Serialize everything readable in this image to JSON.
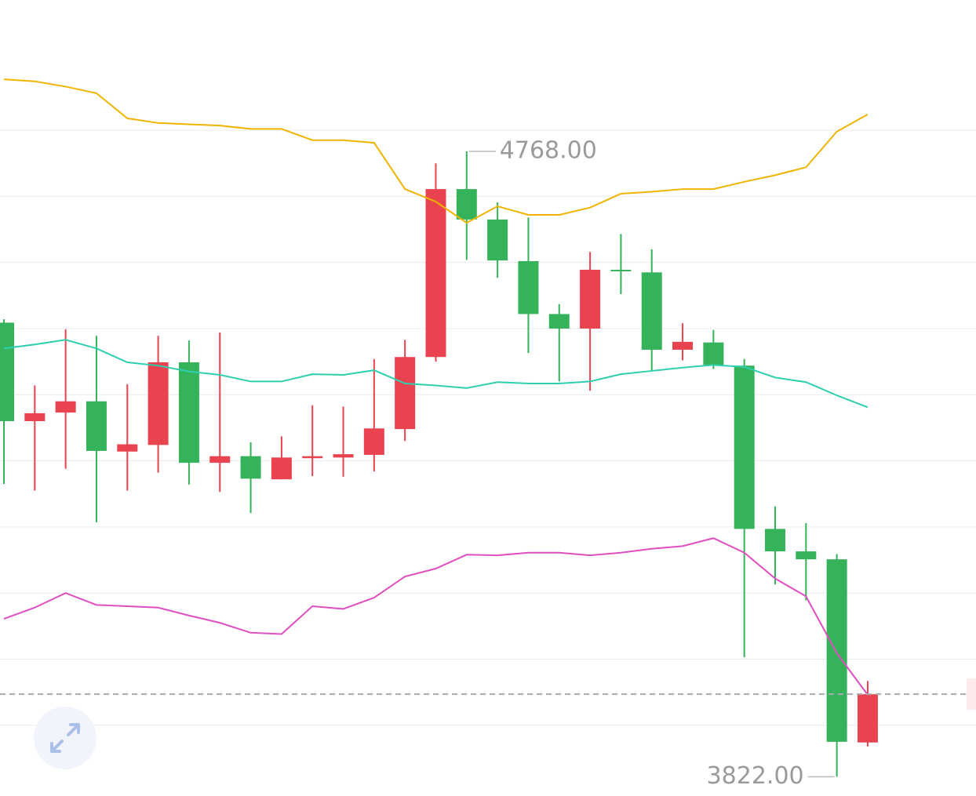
{
  "chart_data": {
    "type": "candlestick",
    "open": [
      4509,
      4360,
      4373,
      4390,
      4314,
      4324,
      4449,
      4297,
      4307,
      4272,
      4304,
      4305,
      4309,
      4348,
      4457,
      4711,
      4665,
      4602,
      4522,
      4500,
      4589,
      4585,
      4468,
      4479,
      4444,
      4197,
      4163,
      4151,
      3874
    ],
    "high": [
      4514,
      4414,
      4499,
      4489,
      4416,
      4489,
      4482,
      4494,
      4328,
      4337,
      4384,
      4382,
      4454,
      4483,
      4750,
      4768,
      4691,
      4668,
      4537,
      4616,
      4643,
      4620,
      4508,
      4498,
      4454,
      4231,
      4206,
      4159,
      3967
    ],
    "low": [
      4265,
      4255,
      4288,
      4207,
      4255,
      4282,
      4264,
      4253,
      4221,
      4272,
      4277,
      4276,
      4284,
      4330,
      4450,
      4604,
      4577,
      4463,
      4420,
      4406,
      4552,
      4435,
      4452,
      4439,
      4003,
      4113,
      4089,
      3822,
      3868
    ],
    "close": [
      4360,
      4372,
      4390,
      4315,
      4325,
      4449,
      4297,
      4307,
      4273,
      4305,
      4307,
      4310,
      4349,
      4457,
      4711,
      4665,
      4603,
      4522,
      4500,
      4589,
      4587,
      4468,
      4480,
      4445,
      4197,
      4163,
      4151,
      3875,
      3947
    ],
    "up_color": "#e8434f",
    "down_color": "#34b35a",
    "bands": [
      {
        "color": "#f0b400",
        "values": [
          4877,
          4874,
          4866,
          4856,
          4818,
          4811,
          4809,
          4807,
          4802,
          4802,
          4785,
          4785,
          4781,
          4711,
          4692,
          4660,
          4685,
          4672,
          4672,
          4683,
          4704,
          4707,
          4711,
          4711,
          4722,
          4732,
          4744,
          4798,
          4824
        ]
      },
      {
        "color": "#2ecfb0",
        "values": [
          4470,
          4476,
          4483,
          4470,
          4449,
          4444,
          4435,
          4430,
          4420,
          4420,
          4431,
          4430,
          4437,
          4417,
          4414,
          4410,
          4419,
          4417,
          4417,
          4420,
          4431,
          4436,
          4441,
          4445,
          4442,
          4426,
          4419,
          4399,
          4381
        ]
      },
      {
        "color": "#e04fc0",
        "values": [
          4061,
          4078,
          4100,
          4082,
          4080,
          4078,
          4066,
          4055,
          4040,
          4038,
          4080,
          4076,
          4093,
          4125,
          4137,
          4158,
          4157,
          4161,
          4161,
          4157,
          4161,
          4167,
          4171,
          4183,
          4161,
          4122,
          4095,
          4009,
          3946
        ]
      }
    ],
    "annotations": [
      {
        "value": 4768,
        "label": "4768.00"
      },
      {
        "value": 3822,
        "label": "3822.00"
      }
    ],
    "ylim": [
      3793,
      4997
    ],
    "yticks": [
      3900,
      4000,
      4100,
      4200,
      4300,
      4400,
      4500,
      4600,
      4700,
      4800
    ],
    "grid": true
  }
}
